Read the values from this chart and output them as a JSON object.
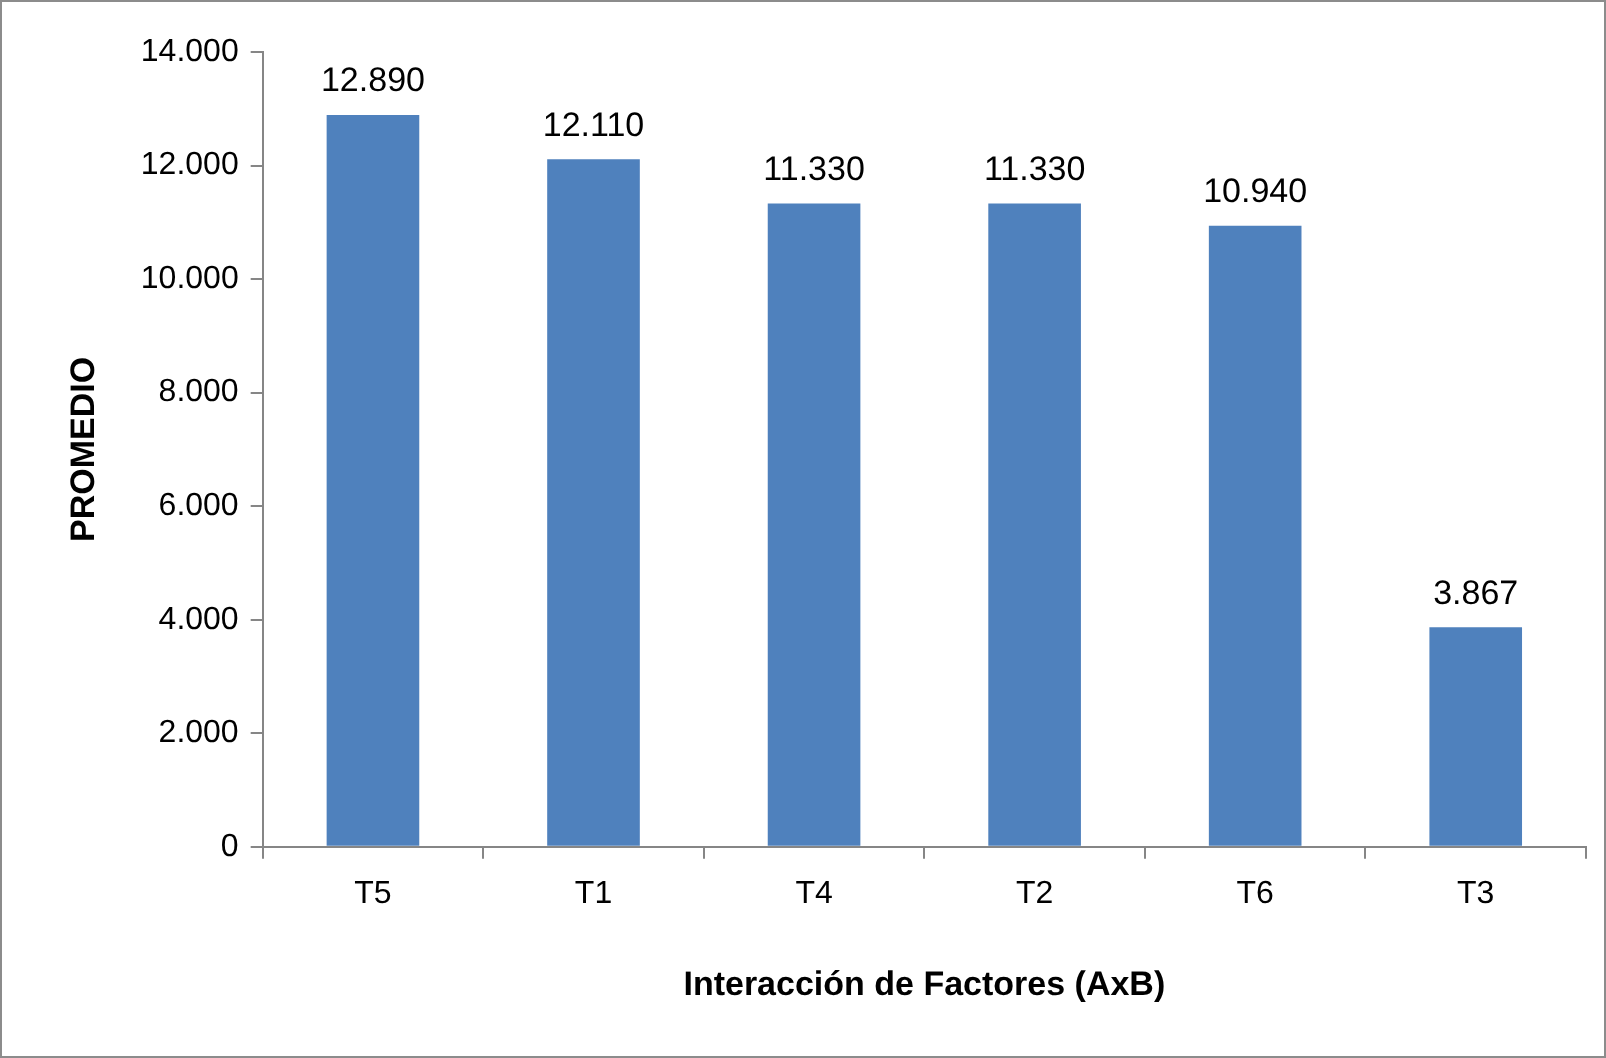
{
  "chart_data": {
    "type": "bar",
    "xlabel": "Interacción de Factores (AxB)",
    "ylabel": "PROMEDIO",
    "categories": [
      "T5",
      "T1",
      "T4",
      "T2",
      "T6",
      "T3"
    ],
    "values": [
      12890,
      12110,
      11330,
      11330,
      10940,
      3867
    ],
    "value_labels": [
      "12.890",
      "12.110",
      "11.330",
      "11.330",
      "10.940",
      "3.867"
    ],
    "color": "#4f81bd",
    "ylim": [
      0,
      14000
    ],
    "yticks": [
      0,
      {
        "value": 2000,
        "label": "2.000"
      },
      {
        "value": 4000,
        "label": "4.000"
      },
      {
        "value": 6000,
        "label": "6.000"
      },
      {
        "value": 8000,
        "label": "8.000"
      },
      {
        "value": 10000,
        "label": "10.000"
      },
      {
        "value": 12000,
        "label": "12.000"
      },
      {
        "value": 14000,
        "label": "14.000"
      }
    ]
  }
}
